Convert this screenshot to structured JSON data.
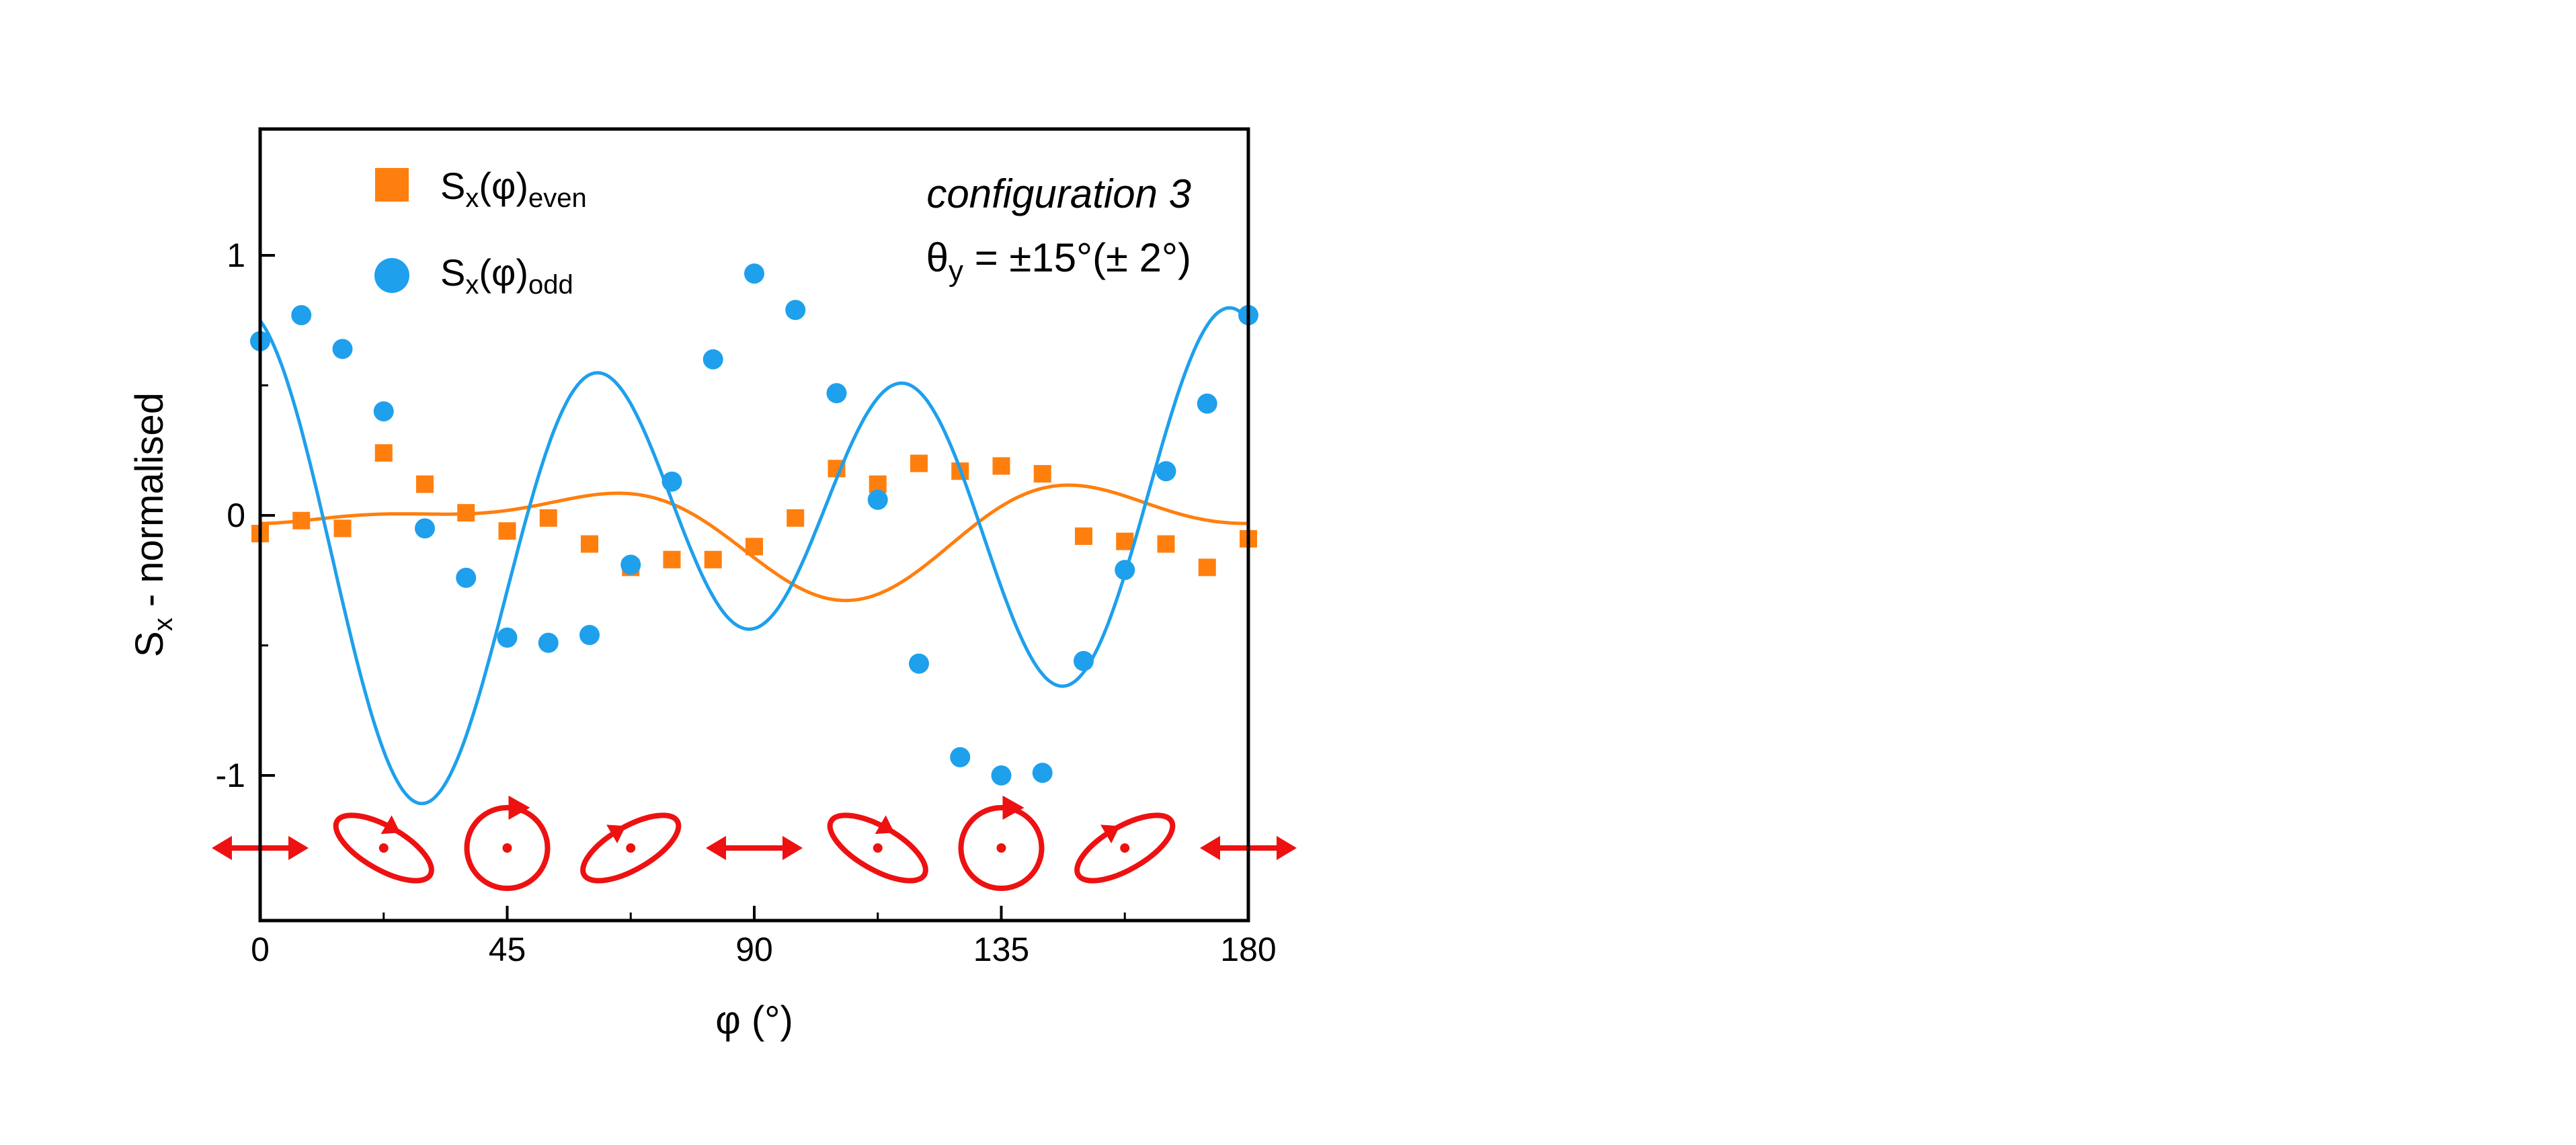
{
  "chart_data": {
    "type": "scatter",
    "xlabel": "φ (°)",
    "ylabel": "S",
    "ylabel_sub": "x",
    "ylabel_suffix": " - normalised",
    "xlim": [
      0,
      180
    ],
    "ylim": [
      -1.6,
      1.5
    ],
    "xticks": [
      0,
      45,
      90,
      135,
      180
    ],
    "xtick_labels": [
      "0",
      "45",
      "90",
      "135",
      "180"
    ],
    "yticks": [
      1,
      0,
      -1
    ],
    "ytick_labels": [
      "1",
      "0",
      "-1"
    ],
    "grid": false,
    "legend_position": "top-left",
    "annotation": {
      "line1": "configuration 3",
      "line2_prefix": "θ",
      "line2_sub": "y",
      "line2_suffix": " = ±15°(± 2°)"
    },
    "series": [
      {
        "name": "S",
        "name_sub": "x",
        "name_mid": "(φ)",
        "name_sub2": "even",
        "marker": "square",
        "color": "#FF7F0E",
        "x": [
          0,
          7.5,
          15,
          22.5,
          30,
          37.5,
          45,
          52.5,
          60,
          67.5,
          75,
          82.5,
          90,
          97.5,
          105,
          112.5,
          120,
          127.5,
          135,
          142.5,
          150,
          157.5,
          165,
          172.5,
          180
        ],
        "y": [
          -0.07,
          -0.02,
          -0.05,
          0.24,
          0.12,
          0.01,
          -0.06,
          -0.01,
          -0.11,
          -0.2,
          -0.17,
          -0.17,
          -0.12,
          -0.01,
          0.18,
          0.12,
          0.2,
          0.17,
          0.19,
          0.16,
          -0.08,
          -0.1,
          -0.11,
          -0.2,
          -0.09
        ],
        "fit": {
          "mean": -0.035,
          "terms": [
            [
              0.086,
              0.052
            ],
            [
              -0.062,
              -0.114
            ],
            [
              -0.02,
              0.06
            ]
          ]
        }
      },
      {
        "name": "S",
        "name_sub": "x",
        "name_mid": "(φ)",
        "name_sub2": "odd",
        "marker": "circle",
        "color": "#1EA0EC",
        "x": [
          0,
          7.5,
          15,
          22.5,
          30,
          37.5,
          45,
          52.5,
          60,
          67.5,
          75,
          82.5,
          90,
          97.5,
          105,
          112.5,
          120,
          127.5,
          135,
          142.5,
          150,
          157.5,
          165,
          172.5,
          180
        ],
        "y": [
          0.67,
          0.77,
          0.64,
          0.4,
          -0.05,
          -0.24,
          -0.47,
          -0.49,
          -0.46,
          -0.19,
          0.13,
          0.6,
          0.93,
          0.79,
          0.47,
          0.06,
          -0.57,
          -0.93,
          -1.0,
          -0.99,
          -0.56,
          -0.21,
          0.17,
          0.43,
          0.77
        ],
        "fit": {
          "mean": -0.063,
          "terms": [
            [
              -0.06,
              -0.127
            ],
            [
              0.22,
              -0.164
            ],
            [
              0.652,
              -0.121
            ]
          ]
        }
      }
    ],
    "polarization_glyphs": [
      {
        "phi": 0,
        "shape": "linear",
        "angle": 0
      },
      {
        "phi": 22.5,
        "shape": "ellipse",
        "angle": 30
      },
      {
        "phi": 45,
        "shape": "circle",
        "angle": 0
      },
      {
        "phi": 67.5,
        "shape": "ellipse",
        "angle": -30
      },
      {
        "phi": 90,
        "shape": "linear",
        "angle": 0
      },
      {
        "phi": 112.5,
        "shape": "ellipse",
        "angle": 30
      },
      {
        "phi": 135,
        "shape": "circle",
        "angle": 0
      },
      {
        "phi": 157.5,
        "shape": "ellipse",
        "angle": -30
      },
      {
        "phi": 180,
        "shape": "linear",
        "angle": 0
      }
    ],
    "glyph_color": "#EE1111"
  }
}
